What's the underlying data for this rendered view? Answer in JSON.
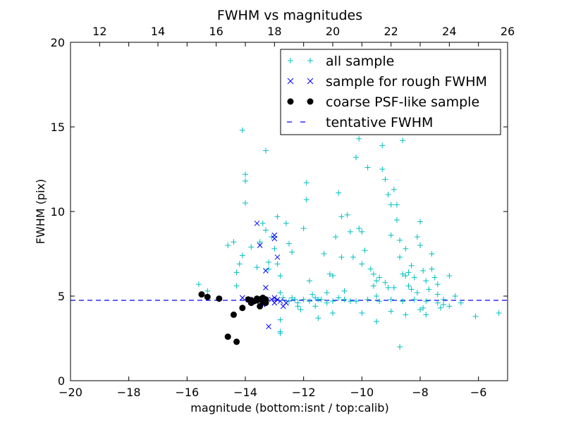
{
  "chart_data": {
    "type": "scatter",
    "title": "FWHM vs magnitudes",
    "xlabel": "magnitude (bottom:isnt / top:calib)",
    "ylabel": "FWHM (pix)",
    "xlim": [
      -20,
      -5
    ],
    "ylim": [
      0,
      20
    ],
    "top_xlim": [
      11,
      26
    ],
    "x_ticks": [
      -20,
      -18,
      -16,
      -14,
      -12,
      -10,
      -8,
      -6
    ],
    "x_tick_labels": [
      "−20",
      "−18",
      "−16",
      "−14",
      "−12",
      "−10",
      "−8",
      "−6"
    ],
    "y_ticks": [
      0,
      5,
      10,
      15,
      20
    ],
    "y_tick_labels": [
      "0",
      "5",
      "10",
      "15",
      "20"
    ],
    "top_ticks": [
      12,
      14,
      16,
      18,
      20,
      22,
      24,
      26
    ],
    "top_tick_labels": [
      "12",
      "14",
      "16",
      "18",
      "20",
      "22",
      "24",
      "26"
    ],
    "legend_position": "top-right",
    "legend": [
      {
        "label": "all sample",
        "marker": "plus",
        "color": "#00bfbf"
      },
      {
        "label": "sample for rough FWHM",
        "marker": "x",
        "color": "#0000ff"
      },
      {
        "label": "coarse PSF-like sample",
        "marker": "circle",
        "color": "#000000"
      },
      {
        "label": "tentative FWHM",
        "marker": "dashed-line",
        "color": "#0000ff"
      }
    ],
    "tentative_fwhm": 4.75,
    "series": [
      {
        "name": "all sample",
        "marker": "plus",
        "color": "#00bfbf",
        "points": [
          [
            -15.6,
            5.7
          ],
          [
            -15.3,
            5.3
          ],
          [
            -14.6,
            8.0
          ],
          [
            -14.4,
            8.2
          ],
          [
            -14.3,
            6.4
          ],
          [
            -14.3,
            5.6
          ],
          [
            -14.2,
            6.9
          ],
          [
            -14.1,
            7.4
          ],
          [
            -14.1,
            14.8
          ],
          [
            -14.0,
            12.2
          ],
          [
            -14.0,
            11.8
          ],
          [
            -14.0,
            10.5
          ],
          [
            -13.8,
            7.9
          ],
          [
            -13.6,
            6.7
          ],
          [
            -13.5,
            8.2
          ],
          [
            -13.4,
            9.3
          ],
          [
            -13.3,
            13.6
          ],
          [
            -13.3,
            8.9
          ],
          [
            -13.2,
            7.0
          ],
          [
            -13.2,
            6.6
          ],
          [
            -13.1,
            8.5
          ],
          [
            -13.0,
            7.8
          ],
          [
            -12.9,
            9.7
          ],
          [
            -12.9,
            6.9
          ],
          [
            -12.8,
            6.2
          ],
          [
            -12.8,
            5.2
          ],
          [
            -12.7,
            4.9
          ],
          [
            -12.6,
            9.3
          ],
          [
            -12.5,
            8.1
          ],
          [
            -12.4,
            7.6
          ],
          [
            -12.3,
            4.8
          ],
          [
            -12.2,
            4.4
          ],
          [
            -12.1,
            4.2
          ],
          [
            -12.0,
            9.0
          ],
          [
            -11.9,
            11.7
          ],
          [
            -11.9,
            10.7
          ],
          [
            -11.8,
            5.9
          ],
          [
            -11.7,
            5.1
          ],
          [
            -11.6,
            4.4
          ],
          [
            -11.5,
            3.7
          ],
          [
            -11.5,
            4.8
          ],
          [
            -11.3,
            7.5
          ],
          [
            -11.2,
            5.2
          ],
          [
            -11.1,
            6.3
          ],
          [
            -11.0,
            6.2
          ],
          [
            -10.9,
            8.5
          ],
          [
            -10.8,
            11.1
          ],
          [
            -10.7,
            9.7
          ],
          [
            -10.7,
            7.3
          ],
          [
            -10.6,
            5.3
          ],
          [
            -10.5,
            9.8
          ],
          [
            -10.4,
            8.8
          ],
          [
            -10.3,
            7.3
          ],
          [
            -10.2,
            13.2
          ],
          [
            -10.1,
            14.3
          ],
          [
            -10.1,
            9.0
          ],
          [
            -10.0,
            8.8
          ],
          [
            -10.0,
            6.9
          ],
          [
            -9.9,
            7.7
          ],
          [
            -9.8,
            12.6
          ],
          [
            -9.7,
            6.6
          ],
          [
            -9.6,
            6.3
          ],
          [
            -9.6,
            5.6
          ],
          [
            -9.5,
            5.9
          ],
          [
            -9.5,
            3.5
          ],
          [
            -9.4,
            6.1
          ],
          [
            -9.3,
            13.9
          ],
          [
            -9.3,
            12.5
          ],
          [
            -9.2,
            11.9
          ],
          [
            -9.1,
            11.0
          ],
          [
            -9.0,
            10.4
          ],
          [
            -9.0,
            8.6
          ],
          [
            -8.9,
            11.3
          ],
          [
            -8.8,
            10.4
          ],
          [
            -8.8,
            9.5
          ],
          [
            -8.7,
            8.3
          ],
          [
            -8.7,
            7.3
          ],
          [
            -8.6,
            6.3
          ],
          [
            -8.6,
            14.2
          ],
          [
            -8.5,
            7.8
          ],
          [
            -8.4,
            6.4
          ],
          [
            -8.3,
            5.4
          ],
          [
            -8.2,
            6.1
          ],
          [
            -8.1,
            8.5
          ],
          [
            -8.0,
            9.4
          ],
          [
            -8.0,
            8.0
          ],
          [
            -7.9,
            6.5
          ],
          [
            -7.8,
            5.9
          ],
          [
            -7.7,
            5.4
          ],
          [
            -7.6,
            7.5
          ],
          [
            -7.5,
            6.1
          ],
          [
            -7.4,
            5.1
          ],
          [
            -7.2,
            4.8
          ],
          [
            -7.0,
            6.2
          ],
          [
            -6.8,
            5.0
          ],
          [
            -6.6,
            4.6
          ],
          [
            -6.1,
            3.8
          ],
          [
            -5.3,
            4.0
          ],
          [
            -8.7,
            2.0
          ],
          [
            -12.8,
            2.8
          ],
          [
            -12.8,
            2.9
          ],
          [
            -12.8,
            3.6
          ],
          [
            -11.0,
            4.0
          ],
          [
            -10.0,
            4.0
          ],
          [
            -9.5,
            5.0
          ],
          [
            -9.0,
            4.1
          ],
          [
            -8.5,
            3.9
          ],
          [
            -8.0,
            4.2
          ],
          [
            -12.5,
            4.7
          ],
          [
            -12.2,
            4.6
          ],
          [
            -11.8,
            4.7
          ],
          [
            -11.4,
            4.8
          ],
          [
            -11.0,
            4.7
          ],
          [
            -10.6,
            4.8
          ],
          [
            -10.2,
            4.7
          ],
          [
            -9.8,
            4.8
          ],
          [
            -9.4,
            4.7
          ],
          [
            -9.0,
            4.8
          ],
          [
            -8.6,
            4.7
          ],
          [
            -8.2,
            4.8
          ],
          [
            -7.8,
            4.7
          ],
          [
            -7.4,
            4.6
          ],
          [
            -7.0,
            4.4
          ],
          [
            -9.2,
            5.8
          ],
          [
            -8.4,
            5.6
          ],
          [
            -8.1,
            5.2
          ],
          [
            -7.9,
            4.3
          ],
          [
            -7.3,
            4.3
          ],
          [
            -7.8,
            3.9
          ],
          [
            -12.4,
            4.9
          ],
          [
            -12.0,
            4.8
          ],
          [
            -11.6,
            4.9
          ],
          [
            -11.2,
            4.6
          ],
          [
            -10.8,
            4.9
          ],
          [
            -10.4,
            4.7
          ],
          [
            -8.9,
            5.5
          ],
          [
            -8.3,
            6.8
          ],
          [
            -7.6,
            6.6
          ],
          [
            -7.4,
            5.7
          ],
          [
            -8.5,
            6.2
          ],
          [
            -9.1,
            5.5
          ],
          [
            -7.2,
            4.5
          ]
        ]
      },
      {
        "name": "sample for rough FWHM",
        "marker": "x",
        "color": "#0000ff",
        "points": [
          [
            -13.6,
            9.3
          ],
          [
            -13.5,
            8.0
          ],
          [
            -13.0,
            8.6
          ],
          [
            -13.0,
            8.4
          ],
          [
            -12.9,
            7.3
          ],
          [
            -13.3,
            6.5
          ],
          [
            -13.3,
            5.5
          ],
          [
            -13.2,
            3.2
          ],
          [
            -14.1,
            4.9
          ],
          [
            -13.9,
            4.8
          ],
          [
            -13.7,
            4.8
          ],
          [
            -13.5,
            4.7
          ],
          [
            -13.3,
            4.7
          ],
          [
            -13.1,
            4.8
          ],
          [
            -13.0,
            4.6
          ],
          [
            -12.9,
            4.8
          ],
          [
            -12.8,
            4.7
          ],
          [
            -12.7,
            4.4
          ],
          [
            -13.4,
            4.5
          ],
          [
            -13.0,
            4.9
          ],
          [
            -12.6,
            4.6
          ]
        ]
      },
      {
        "name": "coarse PSF-like sample",
        "marker": "circle",
        "color": "#000000",
        "points": [
          [
            -15.5,
            5.1
          ],
          [
            -15.3,
            4.95
          ],
          [
            -14.9,
            4.85
          ],
          [
            -14.6,
            2.6
          ],
          [
            -14.4,
            3.9
          ],
          [
            -14.3,
            2.3
          ],
          [
            -14.1,
            4.3
          ],
          [
            -13.9,
            4.8
          ],
          [
            -13.8,
            4.75
          ],
          [
            -13.7,
            4.7
          ],
          [
            -13.6,
            4.75
          ],
          [
            -13.5,
            4.8
          ],
          [
            -13.5,
            4.4
          ],
          [
            -13.4,
            4.7
          ],
          [
            -13.3,
            4.8
          ],
          [
            -13.3,
            4.6
          ],
          [
            -13.8,
            4.6
          ],
          [
            -13.6,
            4.85
          ],
          [
            -13.4,
            4.9
          ]
        ]
      }
    ]
  }
}
